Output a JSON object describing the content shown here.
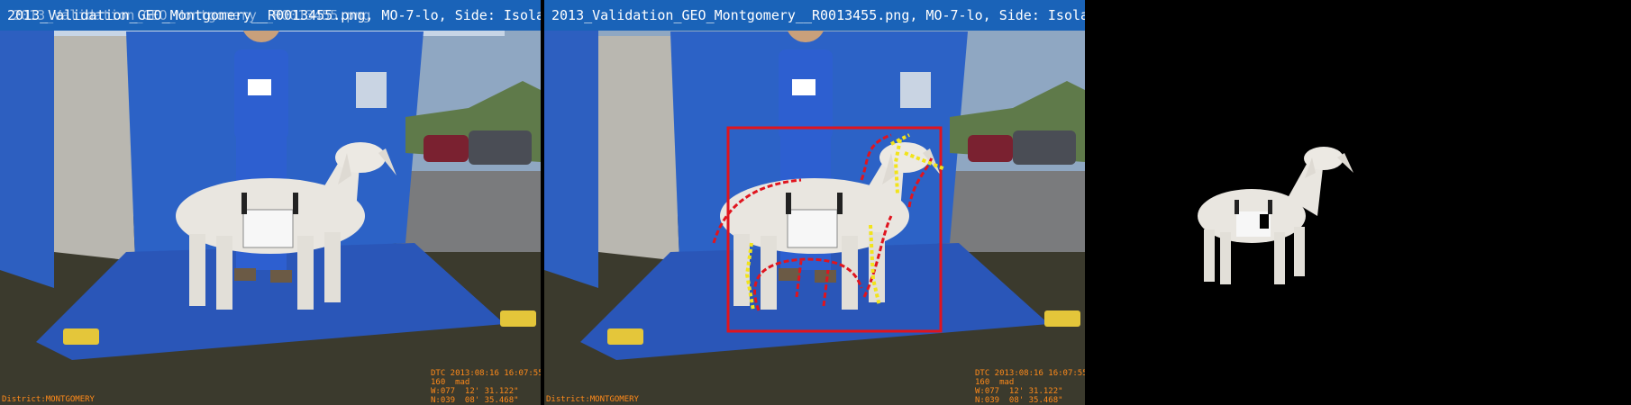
{
  "panels": {
    "left": {
      "title": "2013_Validation_GEO_Montgomery__R0013455.png, MO-7-lo, Side: Isola",
      "title_overlap": "2013_Validation_GEO_Montgomery__R0013455.png"
    },
    "middle": {
      "title": "2013_Validation_GEO_Montgomery__R0013455.png, MO-7-lo, Side: Isola"
    },
    "right": {
      "title": ""
    }
  },
  "stamp": {
    "line1": "DTC 2013:08:16 16:07:55",
    "line2": "160  mad",
    "line3": "W:077  12' 31.122\"",
    "line4": "N:039  08' 35.468\"",
    "district": "District:MONTGOMERY"
  },
  "colors": {
    "title_bar": "#1a63b8",
    "stamp_text": "#ff8a1a",
    "box_red": "#e0141e",
    "stroke_yellow": "#f2e41a"
  },
  "icons": {
    "tent": "tent-icon",
    "goat": "goat-icon",
    "handler": "handler-icon",
    "dumbbell": "dumbbell-icon"
  }
}
